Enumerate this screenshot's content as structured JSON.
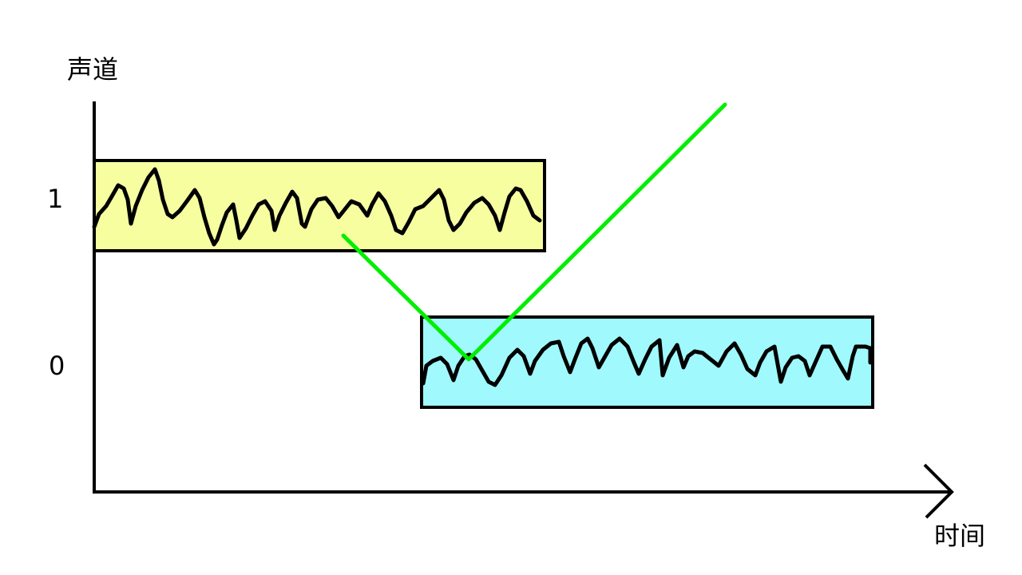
{
  "diagram": {
    "y_axis_label": "声道",
    "x_axis_label": "时间",
    "channels": [
      {
        "label": "1",
        "fill": "#f7fea0"
      },
      {
        "label": "0",
        "fill": "#a0f9fd"
      }
    ],
    "marker_color": "#00ee00",
    "wave_color": "#000000"
  }
}
